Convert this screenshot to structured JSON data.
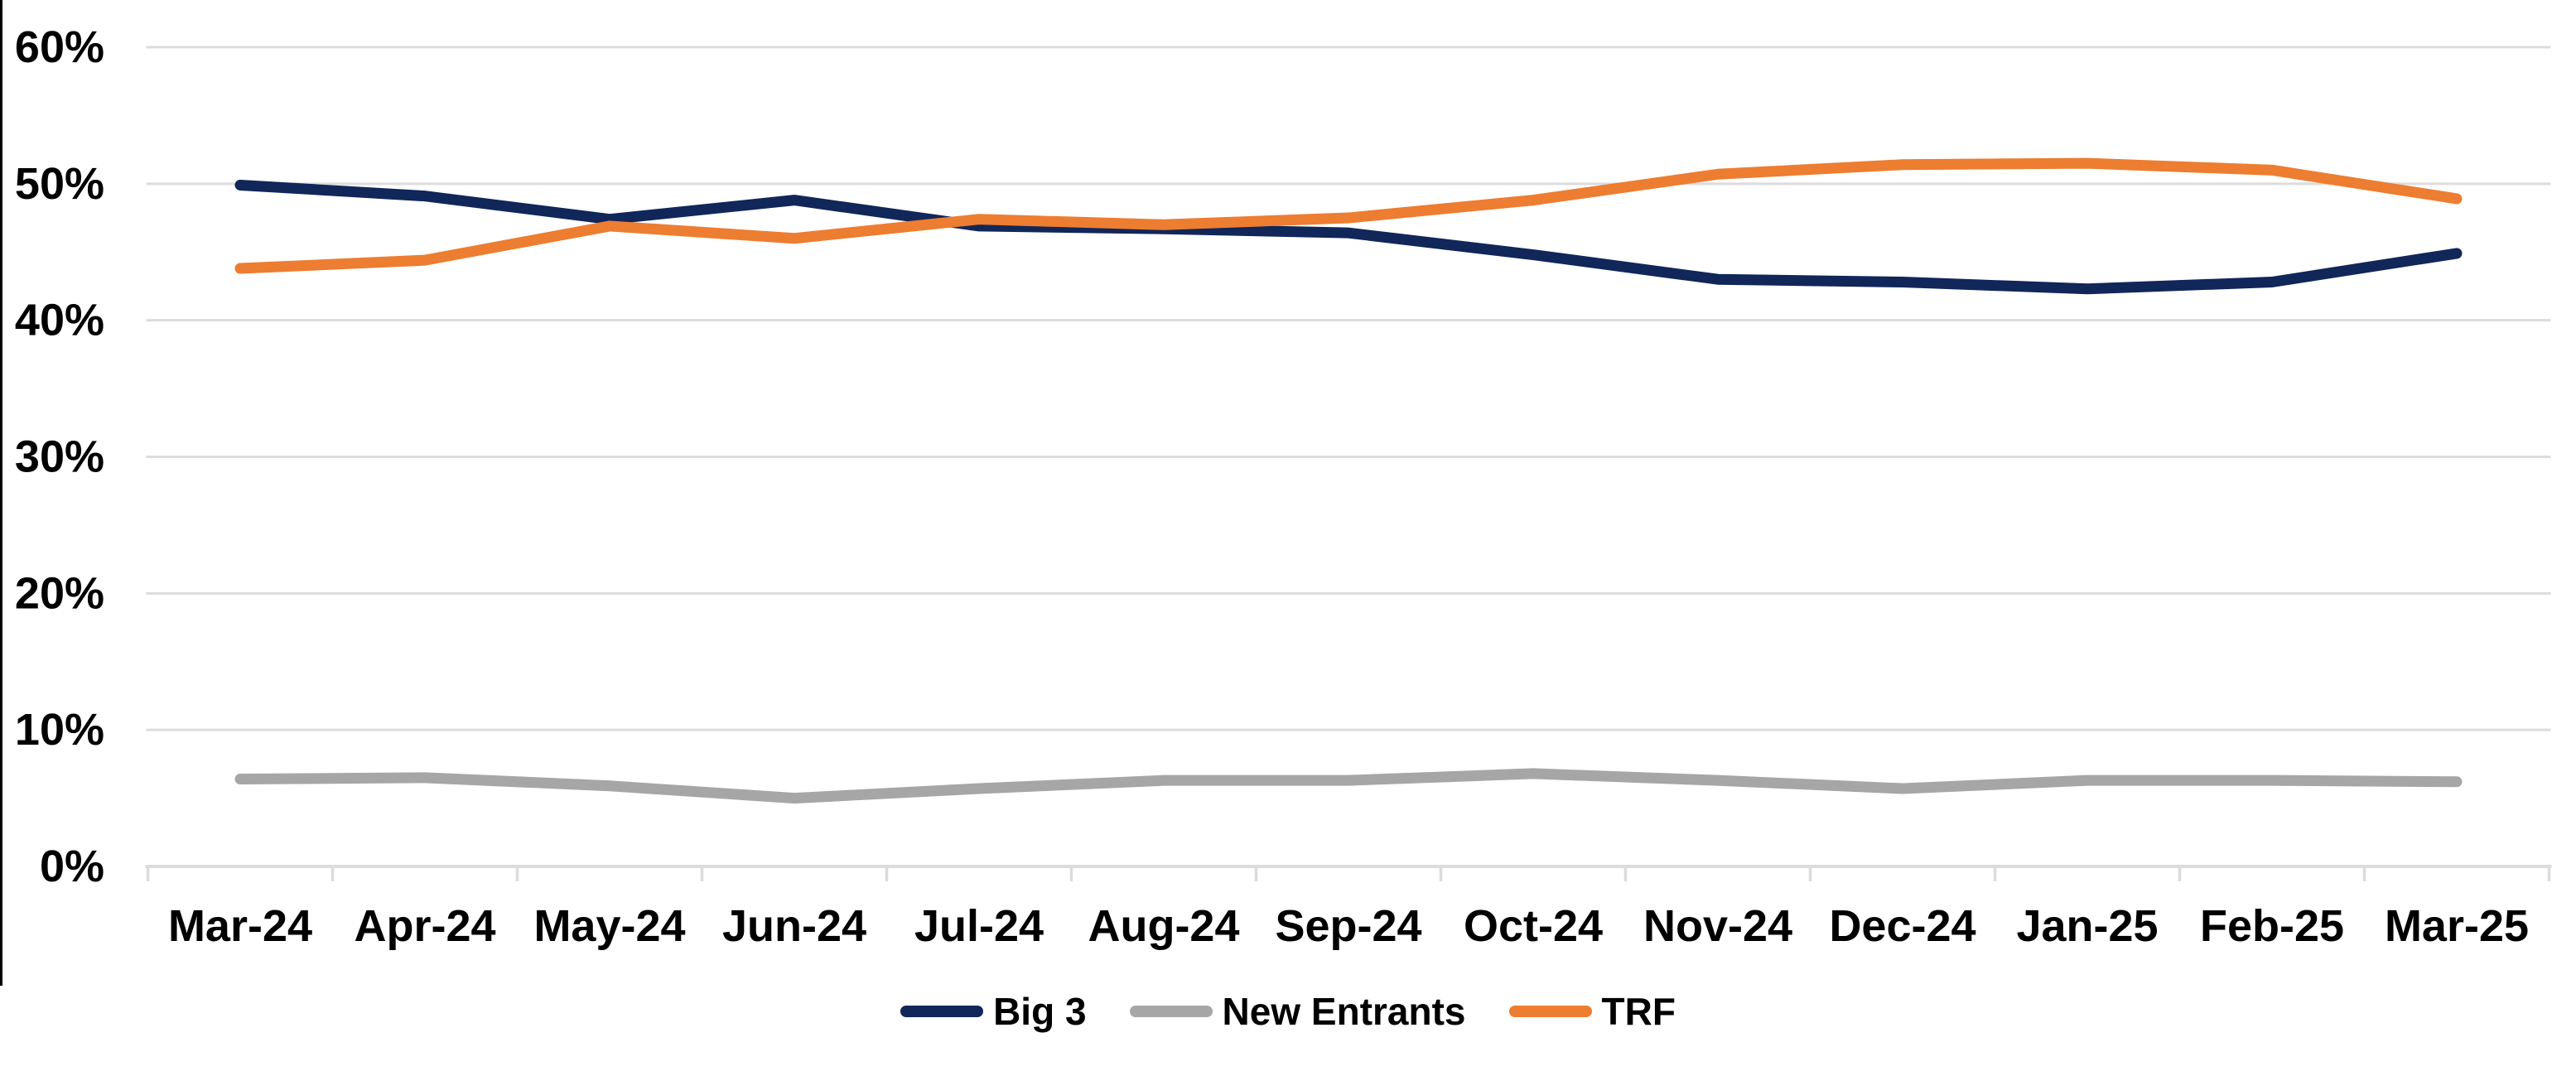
{
  "chart_data": {
    "type": "line",
    "title": "",
    "xlabel": "",
    "ylabel": "",
    "categories": [
      "Mar-24",
      "Apr-24",
      "May-24",
      "Jun-24",
      "Jul-24",
      "Aug-24",
      "Sep-24",
      "Oct-24",
      "Nov-24",
      "Dec-24",
      "Jan-25",
      "Feb-25",
      "Mar-25"
    ],
    "series": [
      {
        "name": "Big 3",
        "color": "#112659",
        "values": [
          49.9,
          49.1,
          47.4,
          48.8,
          46.9,
          46.7,
          46.4,
          44.8,
          43.0,
          42.8,
          42.3,
          42.8,
          44.9
        ]
      },
      {
        "name": "New Entrants",
        "color": "#A6A6A6",
        "values": [
          6.4,
          6.5,
          5.9,
          5.0,
          5.7,
          6.3,
          6.3,
          6.8,
          6.3,
          5.7,
          6.3,
          6.3,
          6.2
        ]
      },
      {
        "name": "TRF",
        "color": "#ED7D31",
        "values": [
          43.8,
          44.4,
          46.9,
          46.0,
          47.4,
          47.0,
          47.5,
          48.8,
          50.7,
          51.4,
          51.5,
          51.0,
          48.9
        ]
      }
    ],
    "y_ticks": [
      "0%",
      "10%",
      "20%",
      "30%",
      "40%",
      "50%",
      "60%"
    ],
    "ylim": [
      0,
      60
    ],
    "grid": "horizontal",
    "legend_position": "bottom"
  },
  "colors": {
    "gridline": "#DCDCDC",
    "axis_line": "#DCDCDC",
    "tick_mark": "#DCDCDC",
    "label_text": "#000000",
    "chart_border": "#000000"
  }
}
